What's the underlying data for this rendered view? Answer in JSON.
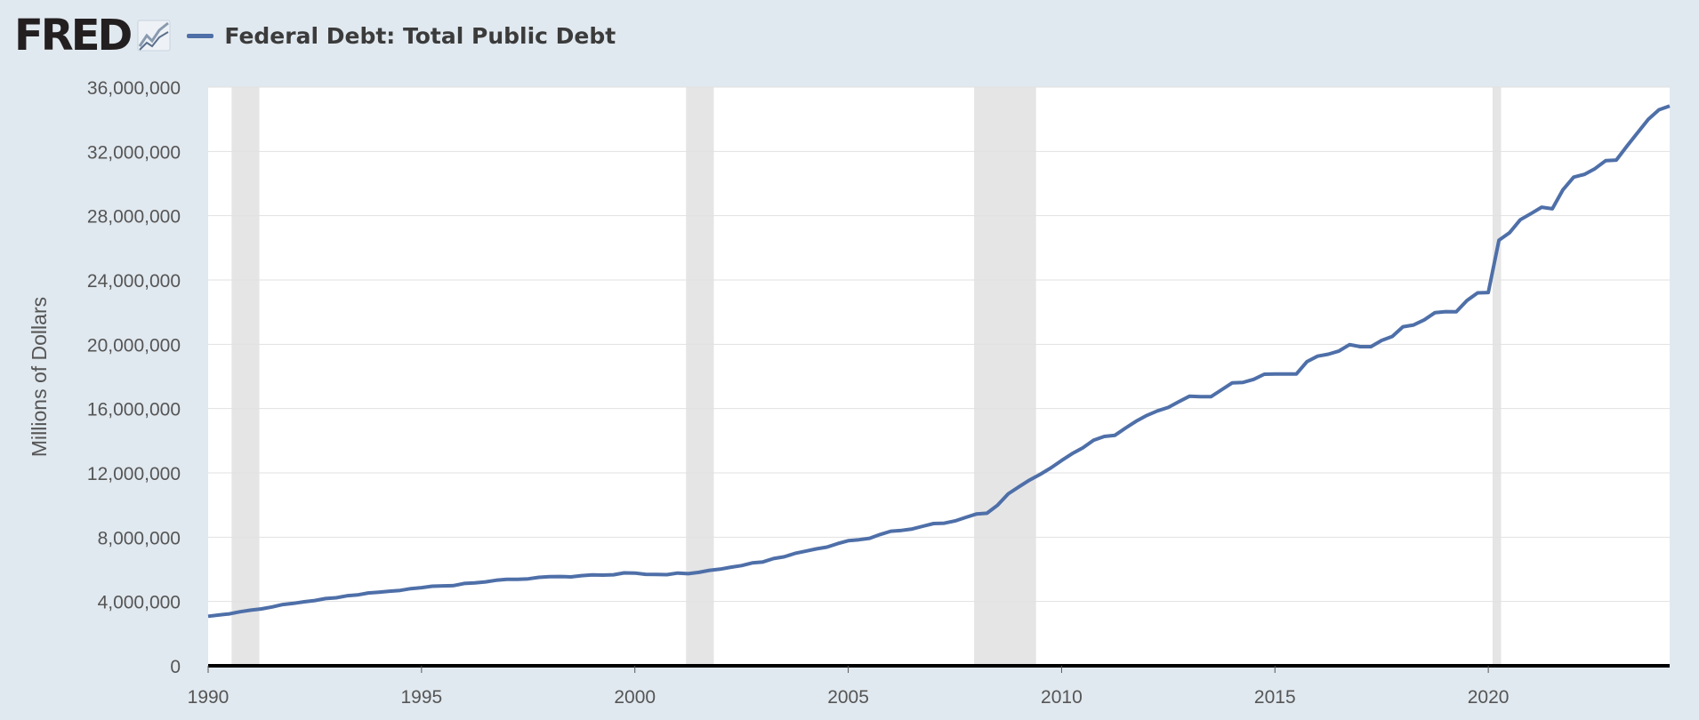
{
  "header": {
    "logo_text": "FRED",
    "logo_icon": "chart-line-icon"
  },
  "chart_data": {
    "type": "line",
    "title": "",
    "xlabel": "",
    "ylabel": "Millions of Dollars",
    "xlim": [
      1990,
      2024.25
    ],
    "ylim": [
      0,
      36000000
    ],
    "grid": true,
    "legend_position": "top-left",
    "x_ticks": [
      "1990",
      "1995",
      "2000",
      "2005",
      "2010",
      "2015",
      "2020"
    ],
    "y_ticks": [
      "0",
      "4,000,000",
      "8,000,000",
      "12,000,000",
      "16,000,000",
      "20,000,000",
      "24,000,000",
      "28,000,000",
      "32,000,000",
      "36,000,000"
    ],
    "recessions": [
      [
        1990.55,
        1991.2
      ],
      [
        2001.2,
        2001.85
      ],
      [
        2007.95,
        2009.4
      ],
      [
        2020.1,
        2020.3
      ]
    ],
    "series": [
      {
        "name": "Federal Debt: Total Public Debt",
        "color": "#4e6fa8",
        "points": [
          [
            1990.0,
            3080000
          ],
          [
            1990.25,
            3160000
          ],
          [
            1990.5,
            3230000
          ],
          [
            1990.75,
            3360000
          ],
          [
            1991.0,
            3460000
          ],
          [
            1991.25,
            3540000
          ],
          [
            1991.5,
            3660000
          ],
          [
            1991.75,
            3810000
          ],
          [
            1992.0,
            3880000
          ],
          [
            1992.25,
            3980000
          ],
          [
            1992.5,
            4060000
          ],
          [
            1992.75,
            4180000
          ],
          [
            1993.0,
            4230000
          ],
          [
            1993.25,
            4350000
          ],
          [
            1993.5,
            4410000
          ],
          [
            1993.75,
            4530000
          ],
          [
            1994.0,
            4580000
          ],
          [
            1994.25,
            4640000
          ],
          [
            1994.5,
            4690000
          ],
          [
            1994.75,
            4800000
          ],
          [
            1995.0,
            4860000
          ],
          [
            1995.25,
            4950000
          ],
          [
            1995.5,
            4970000
          ],
          [
            1995.75,
            4990000
          ],
          [
            1996.0,
            5120000
          ],
          [
            1996.25,
            5160000
          ],
          [
            1996.5,
            5220000
          ],
          [
            1996.75,
            5320000
          ],
          [
            1997.0,
            5380000
          ],
          [
            1997.25,
            5380000
          ],
          [
            1997.5,
            5410000
          ],
          [
            1997.75,
            5500000
          ],
          [
            1998.0,
            5540000
          ],
          [
            1998.25,
            5550000
          ],
          [
            1998.5,
            5530000
          ],
          [
            1998.75,
            5610000
          ],
          [
            1999.0,
            5650000
          ],
          [
            1999.25,
            5640000
          ],
          [
            1999.5,
            5660000
          ],
          [
            1999.75,
            5780000
          ],
          [
            2000.0,
            5770000
          ],
          [
            2000.25,
            5690000
          ],
          [
            2000.5,
            5680000
          ],
          [
            2000.75,
            5670000
          ],
          [
            2001.0,
            5770000
          ],
          [
            2001.25,
            5730000
          ],
          [
            2001.5,
            5810000
          ],
          [
            2001.75,
            5940000
          ],
          [
            2002.0,
            6010000
          ],
          [
            2002.25,
            6130000
          ],
          [
            2002.5,
            6230000
          ],
          [
            2002.75,
            6400000
          ],
          [
            2003.0,
            6460000
          ],
          [
            2003.25,
            6670000
          ],
          [
            2003.5,
            6780000
          ],
          [
            2003.75,
            6990000
          ],
          [
            2004.0,
            7130000
          ],
          [
            2004.25,
            7270000
          ],
          [
            2004.5,
            7380000
          ],
          [
            2004.75,
            7600000
          ],
          [
            2005.0,
            7780000
          ],
          [
            2005.25,
            7840000
          ],
          [
            2005.5,
            7930000
          ],
          [
            2005.75,
            8170000
          ],
          [
            2006.0,
            8370000
          ],
          [
            2006.25,
            8420000
          ],
          [
            2006.5,
            8510000
          ],
          [
            2006.75,
            8680000
          ],
          [
            2007.0,
            8850000
          ],
          [
            2007.25,
            8870000
          ],
          [
            2007.5,
            9010000
          ],
          [
            2007.75,
            9230000
          ],
          [
            2008.0,
            9440000
          ],
          [
            2008.25,
            9490000
          ],
          [
            2008.5,
            9990000
          ],
          [
            2008.75,
            10700000
          ],
          [
            2009.0,
            11130000
          ],
          [
            2009.25,
            11550000
          ],
          [
            2009.5,
            11910000
          ],
          [
            2009.75,
            12310000
          ],
          [
            2010.0,
            12770000
          ],
          [
            2010.25,
            13200000
          ],
          [
            2010.5,
            13560000
          ],
          [
            2010.75,
            14030000
          ],
          [
            2011.0,
            14270000
          ],
          [
            2011.25,
            14340000
          ],
          [
            2011.5,
            14790000
          ],
          [
            2011.75,
            15220000
          ],
          [
            2012.0,
            15580000
          ],
          [
            2012.25,
            15860000
          ],
          [
            2012.5,
            16070000
          ],
          [
            2012.75,
            16430000
          ],
          [
            2013.0,
            16770000
          ],
          [
            2013.25,
            16740000
          ],
          [
            2013.5,
            16740000
          ],
          [
            2013.75,
            17170000
          ],
          [
            2014.0,
            17600000
          ],
          [
            2014.25,
            17630000
          ],
          [
            2014.5,
            17820000
          ],
          [
            2014.75,
            18140000
          ],
          [
            2015.0,
            18150000
          ],
          [
            2015.25,
            18150000
          ],
          [
            2015.5,
            18150000
          ],
          [
            2015.75,
            18920000
          ],
          [
            2016.0,
            19260000
          ],
          [
            2016.25,
            19380000
          ],
          [
            2016.5,
            19580000
          ],
          [
            2016.75,
            19980000
          ],
          [
            2017.0,
            19850000
          ],
          [
            2017.25,
            19850000
          ],
          [
            2017.5,
            20240000
          ],
          [
            2017.75,
            20490000
          ],
          [
            2018.0,
            21090000
          ],
          [
            2018.25,
            21200000
          ],
          [
            2018.5,
            21520000
          ],
          [
            2018.75,
            21970000
          ],
          [
            2019.0,
            22030000
          ],
          [
            2019.25,
            22020000
          ],
          [
            2019.5,
            22720000
          ],
          [
            2019.75,
            23200000
          ],
          [
            2020.0,
            23220000
          ],
          [
            2020.25,
            26470000
          ],
          [
            2020.5,
            26950000
          ],
          [
            2020.75,
            27750000
          ],
          [
            2021.0,
            28130000
          ],
          [
            2021.25,
            28530000
          ],
          [
            2021.5,
            28430000
          ],
          [
            2021.75,
            29620000
          ],
          [
            2022.0,
            30400000
          ],
          [
            2022.25,
            30570000
          ],
          [
            2022.5,
            30930000
          ],
          [
            2022.75,
            31420000
          ],
          [
            2023.0,
            31460000
          ],
          [
            2023.25,
            32330000
          ],
          [
            2023.5,
            33170000
          ],
          [
            2023.75,
            34000000
          ],
          [
            2024.0,
            34590000
          ],
          [
            2024.25,
            34830000
          ]
        ]
      }
    ]
  }
}
